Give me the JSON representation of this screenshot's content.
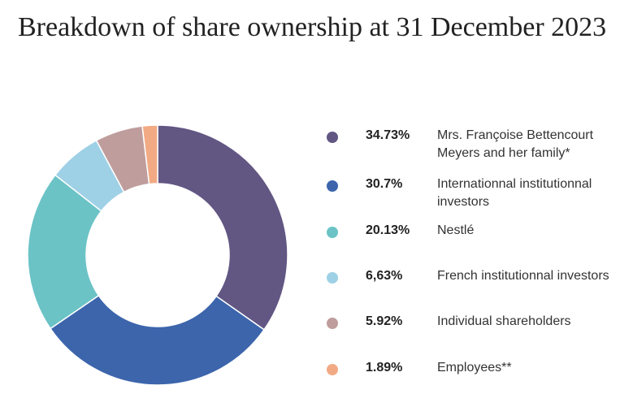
{
  "title": "Breakdown of share ownership at 31 December 2023",
  "chart_data": {
    "type": "pie",
    "donut": true,
    "title": "Breakdown of share ownership at 31 December 2023",
    "legend_position": "right",
    "slices": [
      {
        "value": 34.73,
        "value_label": "34.73%",
        "label": "Mrs. Françoise Bettencourt Meyers and her family*",
        "color": "#625683"
      },
      {
        "value": 30.7,
        "value_label": "30.7%",
        "label": "Internationnal institutionnal investors",
        "color": "#3c65ac"
      },
      {
        "value": 20.13,
        "value_label": "20.13%",
        "label": "Nestlé",
        "color": "#6bc3c6"
      },
      {
        "value": 6.63,
        "value_label": "6,63%",
        "label": "French institutionnal investors",
        "color": "#9ed0e6"
      },
      {
        "value": 5.92,
        "value_label": "5.92%",
        "label": "Individual shareholders",
        "color": "#bf9d9d"
      },
      {
        "value": 1.89,
        "value_label": "1.89%",
        "label": "Employees**",
        "color": "#f2aa84"
      }
    ]
  }
}
